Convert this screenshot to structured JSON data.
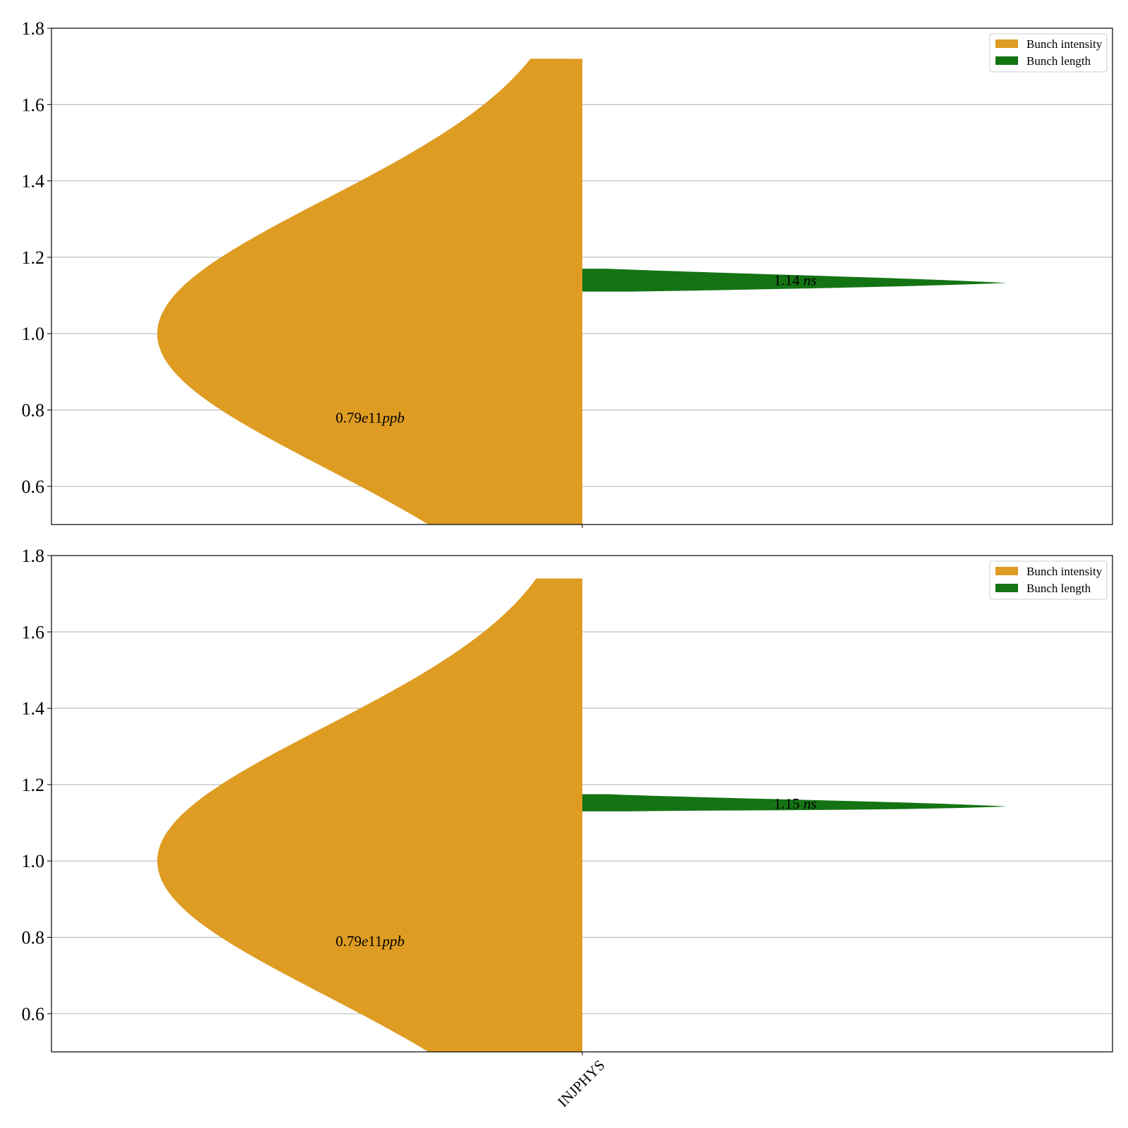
{
  "chart_data": [
    {
      "type": "violin",
      "categories": [
        "INJPHYS"
      ],
      "ylim": [
        0.5,
        1.8
      ],
      "yticks": [
        "0.6",
        "0.8",
        "1.0",
        "1.2",
        "1.4",
        "1.6",
        "1.8"
      ],
      "grid": "y",
      "legend": {
        "placement": "top-right",
        "entries": [
          {
            "label": "Bunch intensity",
            "color": "#de9c23"
          },
          {
            "label": "Bunch length",
            "color": "#147414"
          }
        ]
      },
      "series": [
        {
          "name": "Bunch intensity",
          "side": "left",
          "color": "#de9c23",
          "median": 1.0,
          "max": 1.72,
          "annotation": {
            "value": "0.79",
            "exponent": "e11",
            "unit": "ppb",
            "y": 0.78
          }
        },
        {
          "name": "Bunch length",
          "side": "right",
          "color": "#147414",
          "median": 1.14,
          "max": 1.17,
          "min": 1.11,
          "annotation": {
            "value": "1.14",
            "unit": "ns",
            "y": 1.14
          }
        }
      ]
    },
    {
      "type": "violin",
      "categories": [
        "INJPHYS"
      ],
      "ylim": [
        0.5,
        1.8
      ],
      "yticks": [
        "0.6",
        "0.8",
        "1.0",
        "1.2",
        "1.4",
        "1.6",
        "1.8"
      ],
      "grid": "y",
      "xticklabel": "INJPHYS",
      "legend": {
        "placement": "top-right",
        "entries": [
          {
            "label": "Bunch intensity",
            "color": "#de9c23"
          },
          {
            "label": "Bunch length",
            "color": "#147414"
          }
        ]
      },
      "series": [
        {
          "name": "Bunch intensity",
          "side": "left",
          "color": "#de9c23",
          "median": 1.0,
          "max": 1.74,
          "annotation": {
            "value": "0.79",
            "exponent": "e11",
            "unit": "ppb",
            "y": 0.79
          }
        },
        {
          "name": "Bunch length",
          "side": "right",
          "color": "#147414",
          "median": 1.15,
          "max": 1.175,
          "min": 1.13,
          "annotation": {
            "value": "1.15",
            "unit": "ns",
            "y": 1.15
          }
        }
      ]
    }
  ]
}
